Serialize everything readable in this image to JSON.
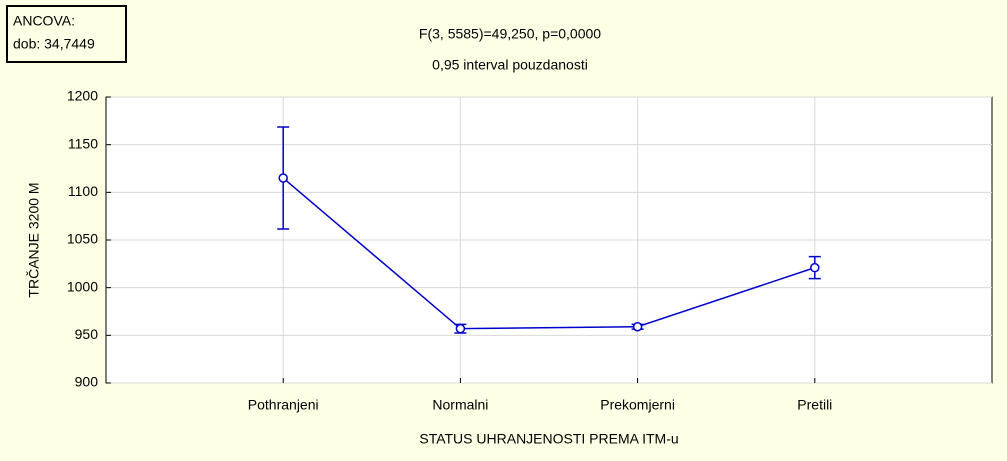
{
  "chart_data": {
    "type": "line",
    "title": "F(3, 5585)=49,250, p=0,0000",
    "subtitle": "0,95 interval pouzdanosti",
    "annotation": [
      "ANCOVA:",
      "dob: 34,7449"
    ],
    "x_label": "STATUS UHRANJENOSTI PREMA ITM-u",
    "y_label": "TRČANJE 3200 M",
    "categories": [
      "Pothranjeni",
      "Normalni",
      "Prekomjerni",
      "Pretili"
    ],
    "series": [
      {
        "color": "#0000cc",
        "values": [
          1115,
          957,
          959,
          1021
        ],
        "errors": [
          53.5,
          4.5,
          2.5,
          11.5
        ]
      }
    ],
    "ylim": [
      900,
      1200
    ],
    "yticks": [
      900,
      950,
      1000,
      1050,
      1100,
      1150,
      1200
    ],
    "grid": true
  }
}
